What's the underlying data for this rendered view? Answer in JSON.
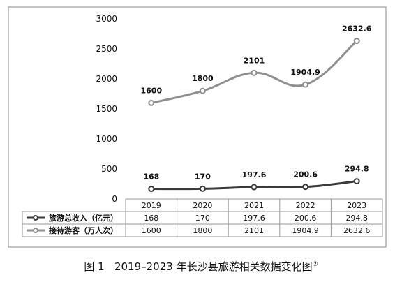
{
  "chart_data": {
    "type": "line",
    "categories": [
      "2019",
      "2020",
      "2021",
      "2022",
      "2023"
    ],
    "y_ticks": [
      "3000",
      "2500",
      "2000",
      "1500",
      "1000",
      "500",
      "0"
    ],
    "ylim": [
      0,
      3000
    ],
    "grid": false,
    "legend": "data-table-bottom",
    "series": [
      {
        "name": "旅游总收入（亿元）",
        "values": [
          168,
          170,
          197.6,
          200.6,
          294.8
        ],
        "labels": [
          "168",
          "170",
          "197.6",
          "200.6",
          "294.8"
        ],
        "color": "#3a3a3a"
      },
      {
        "name": "接待游客（万人次）",
        "values": [
          1600,
          1800,
          2101,
          1904.9,
          2632.6
        ],
        "labels": [
          "1600",
          "1800",
          "2101",
          "1904.9",
          "2632.6"
        ],
        "color": "#8f8f8f"
      }
    ]
  },
  "caption": {
    "label": "图 1",
    "text": "2019–2023 年长沙县旅游相关数据变化图",
    "note": "②"
  }
}
